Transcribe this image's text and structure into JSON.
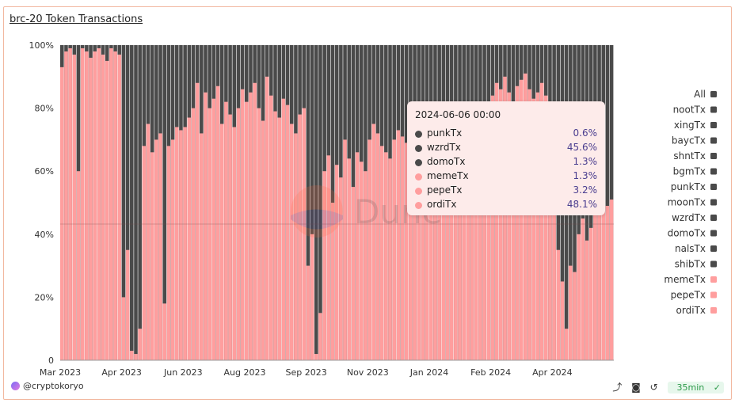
{
  "title": "brc-20 Token Transactions",
  "footer": {
    "author": "@cryptokoryo",
    "refresh_label": "35min",
    "icons": [
      "share-icon",
      "camera-icon",
      "refresh-icon",
      "check-circle-icon"
    ]
  },
  "watermark": "Dune",
  "colors": {
    "dark": "#4a4a4a",
    "pink": "#ff9e9e",
    "grid": "#e6e6e6",
    "accent": "#4a3d8f"
  },
  "chart_data": {
    "type": "bar",
    "stacked": true,
    "normalized": true,
    "x_ticks": [
      "Mar 2023",
      "Apr 2023",
      "Jun 2023",
      "Aug 2023",
      "Sep 2023",
      "Nov 2023",
      "Jan 2024",
      "Feb 2024",
      "Apr 2024"
    ],
    "y_ticks": [
      "0",
      "20%",
      "40%",
      "60%",
      "80%",
      "100%"
    ],
    "ylim": [
      0,
      100
    ],
    "legend": [
      {
        "name": "All",
        "color": "#4a4a4a"
      },
      {
        "name": "nootTx",
        "color": "#4a4a4a"
      },
      {
        "name": "xingTx",
        "color": "#4a4a4a"
      },
      {
        "name": "baycTx",
        "color": "#4a4a4a"
      },
      {
        "name": "shntTx",
        "color": "#4a4a4a"
      },
      {
        "name": "bgmTx",
        "color": "#4a4a4a"
      },
      {
        "name": "punkTx",
        "color": "#4a4a4a"
      },
      {
        "name": "moonTx",
        "color": "#4a4a4a"
      },
      {
        "name": "wzrdTx",
        "color": "#4a4a4a"
      },
      {
        "name": "domoTx",
        "color": "#4a4a4a"
      },
      {
        "name": "nalsTx",
        "color": "#4a4a4a"
      },
      {
        "name": "shibTx",
        "color": "#4a4a4a"
      },
      {
        "name": "memeTx",
        "color": "#ff9e9e"
      },
      {
        "name": "pepeTx",
        "color": "#ff9e9e"
      },
      {
        "name": "ordiTx",
        "color": "#ff9e9e"
      }
    ],
    "pink_share_by_period": [
      {
        "period": "Mar 2023",
        "values": [
          93,
          98,
          99,
          97,
          60,
          99,
          98,
          96,
          98,
          99,
          97,
          95,
          99,
          98,
          97
        ]
      },
      {
        "period": "Apr 2023",
        "values": [
          20,
          35,
          3,
          2,
          10,
          68,
          75,
          66,
          70,
          72,
          18,
          68,
          70,
          74,
          73
        ]
      },
      {
        "period": "Jun 2023",
        "values": [
          74,
          77,
          80,
          88,
          72,
          85,
          80,
          83,
          87,
          75,
          82,
          78,
          74,
          80,
          86
        ]
      },
      {
        "period": "Aug 2023",
        "values": [
          82,
          85,
          88,
          80,
          76,
          90,
          84,
          79,
          77,
          83,
          81,
          75,
          72,
          78,
          80
        ]
      },
      {
        "period": "Sep 2023",
        "values": [
          30,
          40,
          2,
          15,
          60,
          65,
          50,
          62,
          58,
          70,
          64,
          55,
          66,
          63,
          60
        ]
      },
      {
        "period": "Nov 2023",
        "values": [
          70,
          75,
          72,
          68,
          66,
          64,
          70,
          73,
          71,
          69,
          74,
          76,
          72,
          70,
          68
        ]
      },
      {
        "period": "Jan 2024",
        "values": [
          66,
          70,
          65,
          62,
          68,
          64,
          60,
          58,
          63,
          67,
          61,
          59,
          65,
          62,
          60
        ]
      },
      {
        "period": "Feb 2024",
        "values": [
          84,
          88,
          86,
          90,
          85,
          82,
          87,
          89,
          91,
          86,
          83,
          85,
          88,
          84,
          82
        ]
      },
      {
        "period": "Apr 2024",
        "values": [
          55,
          35,
          25,
          10,
          30,
          28,
          40,
          45,
          38,
          42,
          50,
          48,
          52,
          49,
          51
        ]
      }
    ],
    "tooltip": {
      "title": "2024-06-06 00:00",
      "rows": [
        {
          "name": "punkTx",
          "value": "0.6%",
          "color": "#4a4a4a"
        },
        {
          "name": "wzrdTx",
          "value": "45.6%",
          "color": "#4a4a4a"
        },
        {
          "name": "domoTx",
          "value": "1.3%",
          "color": "#4a4a4a"
        },
        {
          "name": "memeTx",
          "value": "1.3%",
          "color": "#ff9e9e"
        },
        {
          "name": "pepeTx",
          "value": "3.2%",
          "color": "#ff9e9e"
        },
        {
          "name": "ordiTx",
          "value": "48.1%",
          "color": "#ff9e9e"
        }
      ]
    },
    "grid": false,
    "legend_position": "right"
  }
}
